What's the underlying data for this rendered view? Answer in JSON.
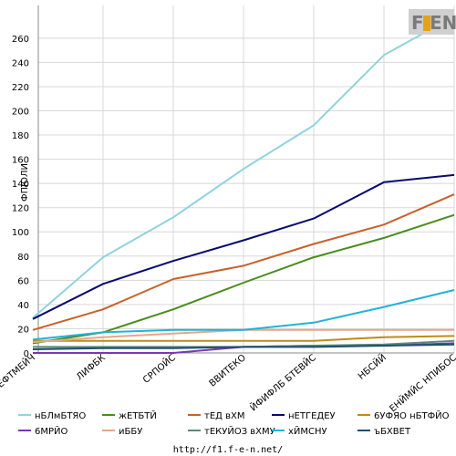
{
  "chart_data": {
    "type": "line",
    "ylabel": "ФПЮЛИ",
    "ylim": [
      0,
      280
    ],
    "yticks": [
      0,
      20,
      40,
      60,
      80,
      100,
      120,
      140,
      160,
      180,
      200,
      220,
      240,
      260
    ],
    "categories": [
      "ФЕФТМЕЙЧ",
      "ЛИФБК",
      "СРПОЙС",
      "ВВИТЕКО",
      "ЙФИФЛБ БТЕВЙС",
      "НБСЙЙ",
      "ЕНЙМЙС НПИБОС"
    ],
    "grid": true,
    "legend_position": "bottom",
    "series": [
      {
        "name": "нБЛмБТЯО",
        "color": "#8fd3de",
        "values": [
          29,
          79,
          112,
          152,
          188,
          246,
          278
        ]
      },
      {
        "name": "жЕТБТЙ",
        "color": "#4a8c1c",
        "values": [
          8,
          17,
          36,
          58,
          79,
          95,
          114
        ]
      },
      {
        "name": "тЕД вХМ",
        "color": "#c8612a",
        "values": [
          19,
          36,
          61,
          72,
          90,
          106,
          131
        ]
      },
      {
        "name": "нЕТГЕДЕУ",
        "color": "#0a0a6e",
        "values": [
          28,
          57,
          76,
          93,
          111,
          141,
          147
        ]
      },
      {
        "name": "6УФЯО нБТФЙО",
        "color": "#c08a1a",
        "values": [
          10,
          10,
          10,
          10,
          10,
          13,
          14
        ]
      },
      {
        "name": "6МРЙО",
        "color": "#7a35b8",
        "values": [
          0,
          0,
          0,
          5,
          6,
          6,
          8
        ]
      },
      {
        "name": "иББУ",
        "color": "#e8a58a",
        "values": [
          9,
          13,
          16,
          19,
          19,
          19,
          19
        ]
      },
      {
        "name": "тЕКУЙОЗ вХМУ",
        "color": "#5a8a7a",
        "values": [
          5,
          5,
          5,
          5,
          6,
          7,
          10
        ]
      },
      {
        "name": "хЙМСНУ",
        "color": "#20b3d6",
        "values": [
          11,
          17,
          19,
          19,
          25,
          38,
          52
        ]
      },
      {
        "name": "ъБХВЕТ",
        "color": "#1f4f6f",
        "values": [
          3,
          4,
          4,
          5,
          5,
          6,
          7
        ]
      }
    ]
  },
  "logo": {
    "text": "F1EN",
    "left": "F",
    "right": "EN"
  },
  "footer": {
    "url": "http://f1.f-e-n.net/"
  }
}
